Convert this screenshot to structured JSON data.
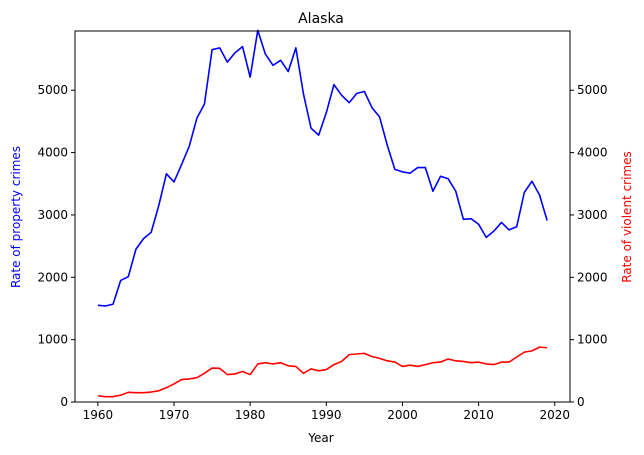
{
  "chart_data": {
    "type": "line",
    "title": "Alaska",
    "xlabel": "Year",
    "ylabel_left": "Rate of property crimes",
    "ylabel_right": "Rate of violent crimes",
    "xlim": [
      1957,
      2022
    ],
    "ylim": [
      0,
      5950
    ],
    "x_ticks": [
      1960,
      1970,
      1980,
      1990,
      2000,
      2010,
      2020
    ],
    "y_ticks": [
      0,
      1000,
      2000,
      3000,
      4000,
      5000
    ],
    "grid": false,
    "legend": "none",
    "x": [
      1960,
      1961,
      1962,
      1963,
      1964,
      1965,
      1966,
      1967,
      1968,
      1969,
      1970,
      1971,
      1972,
      1973,
      1974,
      1975,
      1976,
      1977,
      1978,
      1979,
      1980,
      1981,
      1982,
      1983,
      1984,
      1985,
      1986,
      1987,
      1988,
      1989,
      1990,
      1991,
      1992,
      1993,
      1994,
      1995,
      1996,
      1997,
      1998,
      1999,
      2000,
      2001,
      2002,
      2003,
      2004,
      2005,
      2006,
      2007,
      2008,
      2009,
      2010,
      2011,
      2012,
      2013,
      2014,
      2015,
      2016,
      2017,
      2018,
      2019
    ],
    "series": [
      {
        "axis": "left",
        "color": "#0000ff",
        "values": [
          1550,
          1540,
          1570,
          1950,
          2010,
          2450,
          2620,
          2720,
          3150,
          3660,
          3530,
          3810,
          4100,
          4550,
          4780,
          5650,
          5680,
          5450,
          5600,
          5700,
          5210,
          5960,
          5580,
          5400,
          5480,
          5300,
          5680,
          4940,
          4390,
          4280,
          4640,
          5090,
          4920,
          4800,
          4950,
          4980,
          4720,
          4570,
          4120,
          3730,
          3690,
          3670,
          3760,
          3760,
          3380,
          3620,
          3580,
          3380,
          2930,
          2940,
          2850,
          2640,
          2740,
          2880,
          2760,
          2810,
          3360,
          3540,
          3320,
          2910
        ]
      },
      {
        "axis": "right",
        "color": "#ff0000",
        "values": [
          100,
          85,
          85,
          110,
          155,
          150,
          150,
          160,
          180,
          230,
          290,
          360,
          370,
          390,
          460,
          545,
          540,
          440,
          450,
          490,
          440,
          610,
          630,
          610,
          630,
          580,
          570,
          460,
          530,
          500,
          520,
          600,
          650,
          760,
          770,
          780,
          730,
          700,
          660,
          640,
          570,
          590,
          570,
          600,
          630,
          640,
          690,
          660,
          650,
          630,
          640,
          610,
          600,
          640,
          640,
          720,
          800,
          820,
          880,
          870
        ]
      }
    ]
  },
  "colors": {
    "left_label": "#0000ff",
    "right_label": "#ff0000",
    "axis": "#000000"
  }
}
